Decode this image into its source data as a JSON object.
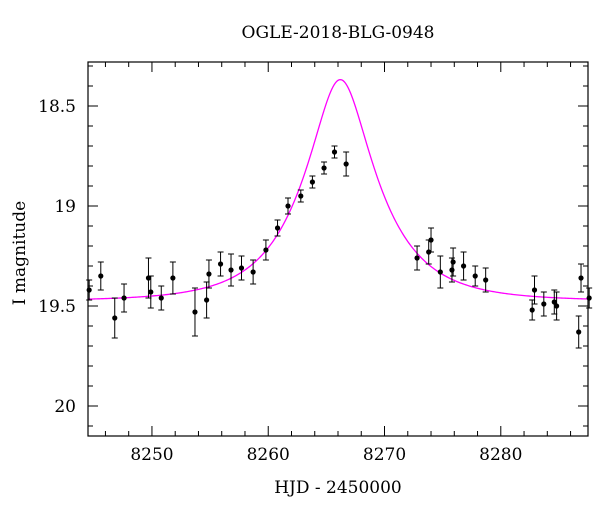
{
  "chart_data": {
    "type": "scatter",
    "title": "OGLE-2018-BLG-0948",
    "xlabel": "HJD - 2450000",
    "ylabel": "I magnitude",
    "xlim": [
      8244.5,
      8287.5
    ],
    "ylim": [
      20.15,
      18.28
    ],
    "y_inverted": true,
    "x_ticks": [
      8250,
      8260,
      8270,
      8280
    ],
    "y_ticks": [
      18.5,
      19,
      19.5,
      20
    ],
    "x_tick_labels": [
      "8250",
      "8260",
      "8270",
      "8280"
    ],
    "y_tick_labels": [
      "18.5",
      "19",
      "19.5",
      "20"
    ],
    "grid": false,
    "legend": "none",
    "colors": {
      "data": "#000000",
      "model": "#ff00ff"
    },
    "series": [
      {
        "kind": "points_with_errorbars",
        "points": [
          {
            "x": 8244.6,
            "y": 19.42,
            "err": 0.05
          },
          {
            "x": 8245.6,
            "y": 19.35,
            "err": 0.07
          },
          {
            "x": 8246.8,
            "y": 19.56,
            "err": 0.1
          },
          {
            "x": 8247.6,
            "y": 19.46,
            "err": 0.07
          },
          {
            "x": 8249.7,
            "y": 19.36,
            "err": 0.1
          },
          {
            "x": 8249.9,
            "y": 19.43,
            "err": 0.08
          },
          {
            "x": 8250.8,
            "y": 19.46,
            "err": 0.06
          },
          {
            "x": 8251.8,
            "y": 19.36,
            "err": 0.08
          },
          {
            "x": 8253.7,
            "y": 19.53,
            "err": 0.12
          },
          {
            "x": 8254.7,
            "y": 19.47,
            "err": 0.09
          },
          {
            "x": 8254.9,
            "y": 19.34,
            "err": 0.07
          },
          {
            "x": 8255.9,
            "y": 19.29,
            "err": 0.06
          },
          {
            "x": 8256.8,
            "y": 19.32,
            "err": 0.08
          },
          {
            "x": 8257.7,
            "y": 19.31,
            "err": 0.06
          },
          {
            "x": 8258.7,
            "y": 19.33,
            "err": 0.06
          },
          {
            "x": 8259.8,
            "y": 19.22,
            "err": 0.05
          },
          {
            "x": 8260.8,
            "y": 19.11,
            "err": 0.04
          },
          {
            "x": 8261.7,
            "y": 19.0,
            "err": 0.04
          },
          {
            "x": 8262.8,
            "y": 18.95,
            "err": 0.03
          },
          {
            "x": 8263.8,
            "y": 18.88,
            "err": 0.03
          },
          {
            "x": 8264.8,
            "y": 18.81,
            "err": 0.03
          },
          {
            "x": 8265.7,
            "y": 18.73,
            "err": 0.03
          },
          {
            "x": 8266.7,
            "y": 18.79,
            "err": 0.06
          },
          {
            "x": 8272.8,
            "y": 19.26,
            "err": 0.06
          },
          {
            "x": 8273.8,
            "y": 19.23,
            "err": 0.06
          },
          {
            "x": 8274.0,
            "y": 19.17,
            "err": 0.06
          },
          {
            "x": 8274.8,
            "y": 19.33,
            "err": 0.08
          },
          {
            "x": 8275.8,
            "y": 19.32,
            "err": 0.06
          },
          {
            "x": 8275.9,
            "y": 19.28,
            "err": 0.07
          },
          {
            "x": 8276.8,
            "y": 19.3,
            "err": 0.07
          },
          {
            "x": 8277.8,
            "y": 19.35,
            "err": 0.05
          },
          {
            "x": 8278.7,
            "y": 19.37,
            "err": 0.06
          },
          {
            "x": 8282.7,
            "y": 19.52,
            "err": 0.05
          },
          {
            "x": 8282.9,
            "y": 19.42,
            "err": 0.07
          },
          {
            "x": 8283.7,
            "y": 19.49,
            "err": 0.06
          },
          {
            "x": 8284.6,
            "y": 19.48,
            "err": 0.06
          },
          {
            "x": 8284.8,
            "y": 19.5,
            "err": 0.07
          },
          {
            "x": 8286.7,
            "y": 19.63,
            "err": 0.08
          },
          {
            "x": 8286.9,
            "y": 19.36,
            "err": 0.07
          },
          {
            "x": 8287.6,
            "y": 19.46,
            "err": 0.05
          }
        ]
      },
      {
        "kind": "model_curve",
        "model": {
          "t0": 8266.2,
          "u0": 0.38,
          "tE": 6.0,
          "I_base": 19.475
        }
      }
    ]
  }
}
